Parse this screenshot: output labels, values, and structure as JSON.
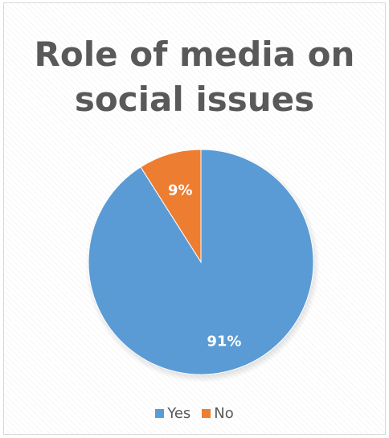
{
  "chart_data": {
    "type": "pie",
    "title": "Role of media on social issues",
    "title_lines": [
      "Role of media on",
      "social issues"
    ],
    "categories": [
      "Yes",
      "No"
    ],
    "values": [
      91,
      9
    ],
    "data_labels": [
      "91%",
      "9%"
    ],
    "colors": [
      "#5b9bd5",
      "#ed7d31"
    ],
    "legend_position": "bottom"
  }
}
